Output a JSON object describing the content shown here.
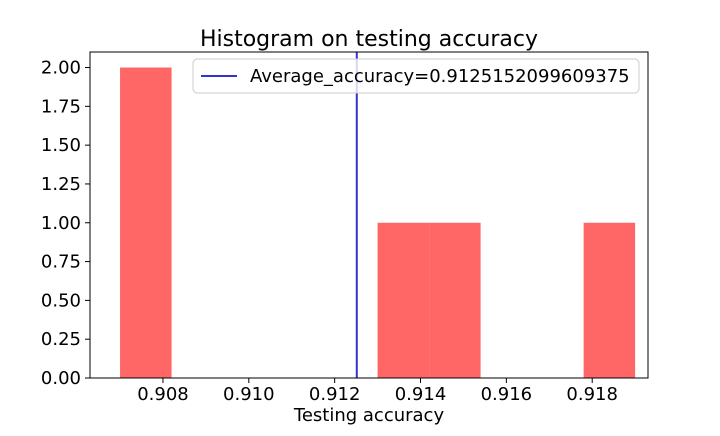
{
  "chart_data": {
    "type": "bar",
    "subtype": "histogram",
    "title": "Histogram on testing accuracy",
    "xlabel": "Testing accuracy",
    "ylabel": "",
    "xlim": [
      0.9063,
      0.9193
    ],
    "ylim": [
      0.0,
      2.1
    ],
    "xticks": [
      0.908,
      0.91,
      0.912,
      0.914,
      0.916,
      0.918
    ],
    "xtick_labels": [
      "0.908",
      "0.910",
      "0.912",
      "0.914",
      "0.916",
      "0.918"
    ],
    "yticks": [
      0.0,
      0.25,
      0.5,
      0.75,
      1.0,
      1.25,
      1.5,
      1.75,
      2.0
    ],
    "ytick_labels": [
      "0.00",
      "0.25",
      "0.50",
      "0.75",
      "1.00",
      "1.25",
      "1.50",
      "1.75",
      "2.00"
    ],
    "bin_edges": [
      0.907,
      0.9082,
      0.9094,
      0.9106,
      0.9118,
      0.913,
      0.9142,
      0.9154,
      0.9166,
      0.9178,
      0.919
    ],
    "counts": [
      2,
      0,
      0,
      0,
      0,
      1,
      1,
      0,
      0,
      1
    ],
    "bar_color": "#ff6666",
    "average_line": {
      "x": 0.9125152099609375,
      "color": "#3333cc"
    },
    "legend": {
      "placement": "upper right",
      "entries": [
        {
          "label": "Average_accuracy=0.9125152099609375",
          "color": "#3333cc"
        }
      ]
    },
    "grid": false
  }
}
